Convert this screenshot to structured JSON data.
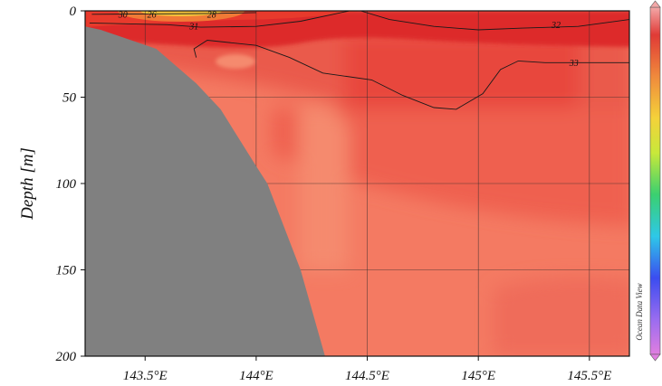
{
  "chart_data": {
    "type": "heatmap",
    "ylabel": "Depth [m]",
    "xlabel": "",
    "xlim": [
      143.23,
      145.68
    ],
    "ylim": [
      0,
      200
    ],
    "y_inverted": true,
    "x_ticks": [
      143.5,
      144.0,
      144.5,
      145.0,
      145.5
    ],
    "x_tick_labels": [
      "143.5°E",
      "144°E",
      "144.5°E",
      "145°E",
      "145.5°E"
    ],
    "y_ticks": [
      0,
      50,
      100,
      150,
      200
    ],
    "y_tick_labels": [
      "0",
      "50",
      "100",
      "150",
      "200"
    ],
    "grid": true,
    "colors": {
      "surface_high": "#f08a3c",
      "upper": "#dd2a2a",
      "mid": "#ec5a4c",
      "deep": "#f47a62",
      "bottom": "#f07060",
      "land": "#808080"
    },
    "bathymetry": [
      {
        "x": 143.23,
        "depth": 9
      },
      {
        "x": 143.3,
        "depth": 11
      },
      {
        "x": 143.55,
        "depth": 22
      },
      {
        "x": 143.73,
        "depth": 42
      },
      {
        "x": 143.84,
        "depth": 57
      },
      {
        "x": 144.0,
        "depth": 90
      },
      {
        "x": 144.05,
        "depth": 100
      },
      {
        "x": 144.2,
        "depth": 150
      },
      {
        "x": 144.31,
        "depth": 200
      }
    ],
    "contours": [
      {
        "label": "30",
        "points": [
          [
            143.26,
            2
          ],
          [
            143.5,
            1.8
          ],
          [
            143.8,
            1.5
          ],
          [
            144.0,
            1
          ]
        ]
      },
      {
        "label": "31",
        "points": [
          [
            143.25,
            7
          ],
          [
            143.6,
            8
          ],
          [
            143.75,
            9.5
          ],
          [
            144.0,
            9
          ],
          [
            144.2,
            6
          ],
          [
            144.42,
            0
          ]
        ]
      },
      {
        "label": "32",
        "points": [
          [
            144.47,
            0
          ],
          [
            144.6,
            5
          ],
          [
            144.8,
            9
          ],
          [
            145.0,
            11
          ],
          [
            145.2,
            10
          ],
          [
            145.45,
            9
          ],
          [
            145.68,
            5
          ]
        ]
      },
      {
        "label": "33",
        "points": [
          [
            143.73,
            27
          ],
          [
            143.72,
            22
          ],
          [
            143.78,
            17
          ],
          [
            144.0,
            20
          ],
          [
            144.15,
            27
          ],
          [
            144.3,
            36
          ],
          [
            144.52,
            40
          ],
          [
            144.66,
            49
          ],
          [
            144.8,
            56
          ],
          [
            144.9,
            57
          ],
          [
            145.02,
            48
          ],
          [
            145.1,
            34
          ],
          [
            145.18,
            29
          ],
          [
            145.3,
            30
          ],
          [
            145.5,
            30
          ],
          [
            145.68,
            30
          ]
        ]
      }
    ],
    "contour_labels": [
      {
        "text": "30",
        "x": 143.4,
        "depth": 2
      },
      {
        "text": "26",
        "x": 143.53,
        "depth": 2
      },
      {
        "text": "28",
        "x": 143.8,
        "depth": 2
      },
      {
        "text": "31",
        "x": 143.72,
        "depth": 9
      },
      {
        "text": "32",
        "x": 145.35,
        "depth": 8
      },
      {
        "text": "33",
        "x": 145.43,
        "depth": 30
      }
    ],
    "watermark": "Ocean Data View"
  }
}
